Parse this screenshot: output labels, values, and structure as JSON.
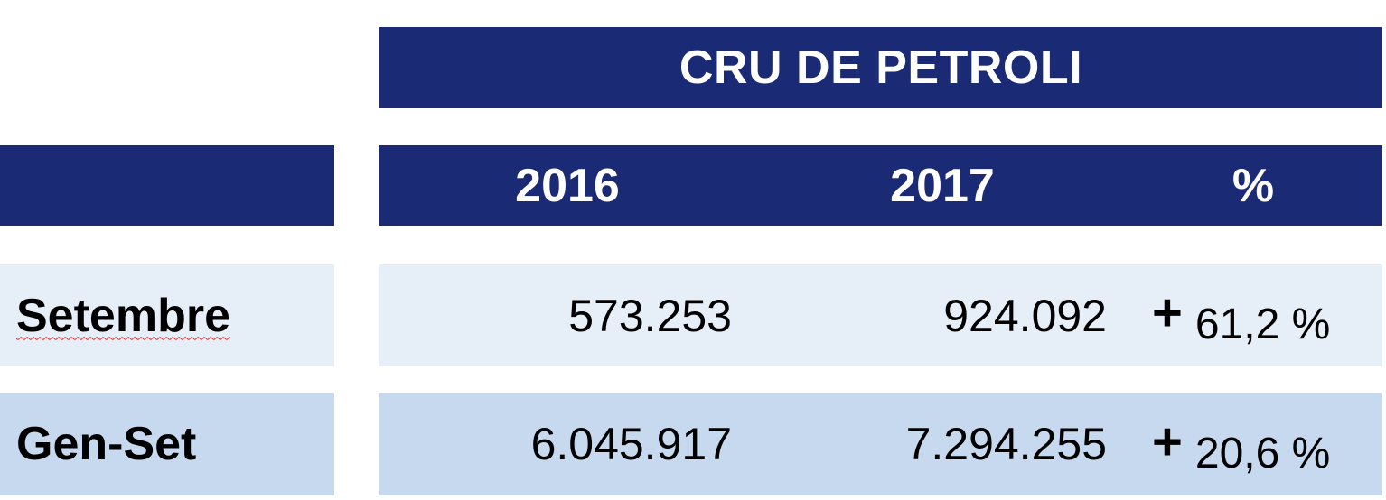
{
  "title": "CRU DE PETROLI",
  "columns": {
    "y2016": "2016",
    "y2017": "2017",
    "pct": "%"
  },
  "rows": [
    {
      "label": "Setembre",
      "v2016": "573.253",
      "v2017": "924.092",
      "sign": "+",
      "change": "61,2 %"
    },
    {
      "label": "Gen-Set",
      "v2016": "6.045.917",
      "v2017": "7.294.255",
      "sign": "+",
      "change": "20,6 %"
    }
  ],
  "colors": {
    "header": "#1b2a74",
    "row1": "#e6eef8",
    "row2": "#c6d9ee"
  }
}
